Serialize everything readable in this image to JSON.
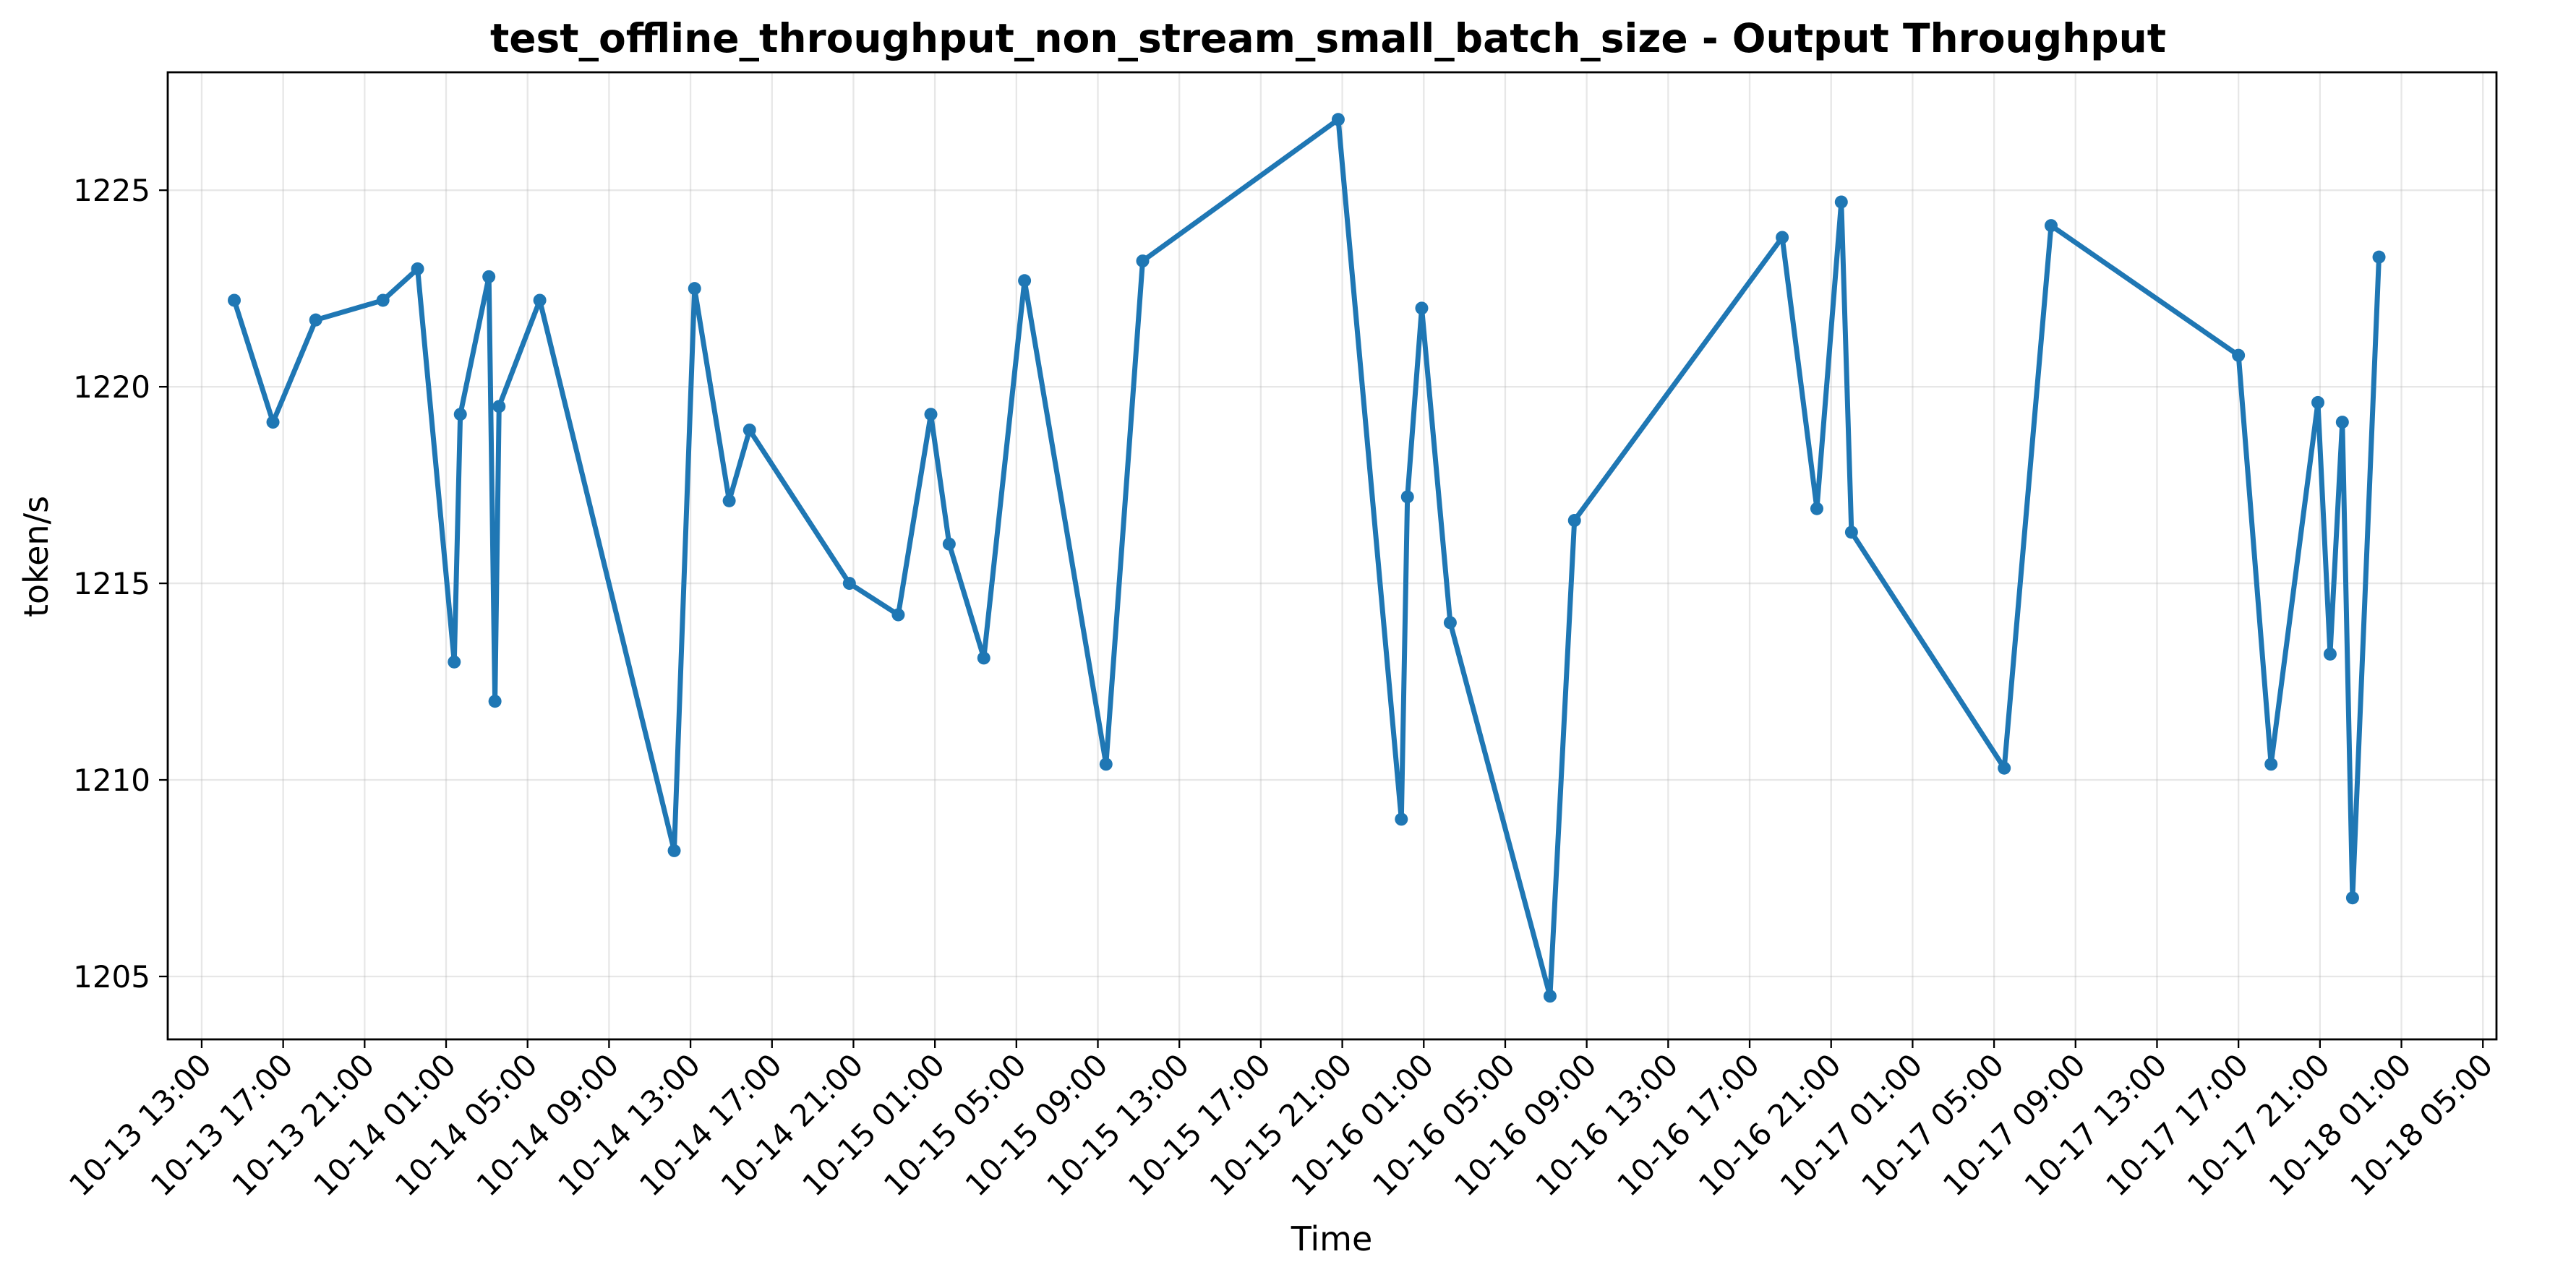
{
  "chart_data": {
    "type": "line",
    "title": "test_offline_throughput_non_stream_small_batch_size - Output Throughput",
    "xlabel": "Time",
    "ylabel": "token/s",
    "ylim": [
      1203.4,
      1228.0
    ],
    "xlim": [
      "2025-10-13 11:20",
      "2025-10-18 05:40"
    ],
    "grid": true,
    "color": "#1f77b4",
    "y_ticks": [
      1205,
      1210,
      1215,
      1220,
      1225
    ],
    "x_ticks": [
      {
        "t": "2025-10-13 13:00",
        "label": "10-13 13:00"
      },
      {
        "t": "2025-10-13 17:00",
        "label": "10-13 17:00"
      },
      {
        "t": "2025-10-13 21:00",
        "label": "10-13 21:00"
      },
      {
        "t": "2025-10-14 01:00",
        "label": "10-14 01:00"
      },
      {
        "t": "2025-10-14 05:00",
        "label": "10-14 05:00"
      },
      {
        "t": "2025-10-14 09:00",
        "label": "10-14 09:00"
      },
      {
        "t": "2025-10-14 13:00",
        "label": "10-14 13:00"
      },
      {
        "t": "2025-10-14 17:00",
        "label": "10-14 17:00"
      },
      {
        "t": "2025-10-14 21:00",
        "label": "10-14 21:00"
      },
      {
        "t": "2025-10-15 01:00",
        "label": "10-15 01:00"
      },
      {
        "t": "2025-10-15 05:00",
        "label": "10-15 05:00"
      },
      {
        "t": "2025-10-15 09:00",
        "label": "10-15 09:00"
      },
      {
        "t": "2025-10-15 13:00",
        "label": "10-15 13:00"
      },
      {
        "t": "2025-10-15 17:00",
        "label": "10-15 17:00"
      },
      {
        "t": "2025-10-15 21:00",
        "label": "10-15 21:00"
      },
      {
        "t": "2025-10-16 01:00",
        "label": "10-16 01:00"
      },
      {
        "t": "2025-10-16 05:00",
        "label": "10-16 05:00"
      },
      {
        "t": "2025-10-16 09:00",
        "label": "10-16 09:00"
      },
      {
        "t": "2025-10-16 13:00",
        "label": "10-16 13:00"
      },
      {
        "t": "2025-10-16 17:00",
        "label": "10-16 17:00"
      },
      {
        "t": "2025-10-16 21:00",
        "label": "10-16 21:00"
      },
      {
        "t": "2025-10-17 01:00",
        "label": "10-17 01:00"
      },
      {
        "t": "2025-10-17 05:00",
        "label": "10-17 05:00"
      },
      {
        "t": "2025-10-17 09:00",
        "label": "10-17 09:00"
      },
      {
        "t": "2025-10-17 13:00",
        "label": "10-17 13:00"
      },
      {
        "t": "2025-10-17 17:00",
        "label": "10-17 17:00"
      },
      {
        "t": "2025-10-17 21:00",
        "label": "10-17 21:00"
      },
      {
        "t": "2025-10-18 01:00",
        "label": "10-18 01:00"
      },
      {
        "t": "2025-10-18 05:00",
        "label": "10-18 05:00"
      }
    ],
    "series": [
      {
        "points": [
          {
            "t": "2025-10-13 14:36",
            "y": 1222.2
          },
          {
            "t": "2025-10-13 16:30",
            "y": 1219.1
          },
          {
            "t": "2025-10-13 18:36",
            "y": 1221.7
          },
          {
            "t": "2025-10-13 21:54",
            "y": 1222.2
          },
          {
            "t": "2025-10-13 23:36",
            "y": 1223.0
          },
          {
            "t": "2025-10-14 01:24",
            "y": 1213.0
          },
          {
            "t": "2025-10-14 01:42",
            "y": 1219.3
          },
          {
            "t": "2025-10-14 03:06",
            "y": 1222.8
          },
          {
            "t": "2025-10-14 03:24",
            "y": 1212.0
          },
          {
            "t": "2025-10-14 03:36",
            "y": 1219.5
          },
          {
            "t": "2025-10-14 05:36",
            "y": 1222.2
          },
          {
            "t": "2025-10-14 12:12",
            "y": 1208.2
          },
          {
            "t": "2025-10-14 13:12",
            "y": 1222.5
          },
          {
            "t": "2025-10-14 14:54",
            "y": 1217.1
          },
          {
            "t": "2025-10-14 15:54",
            "y": 1218.9
          },
          {
            "t": "2025-10-14 20:48",
            "y": 1215.0
          },
          {
            "t": "2025-10-14 23:12",
            "y": 1214.2
          },
          {
            "t": "2025-10-15 00:48",
            "y": 1219.3
          },
          {
            "t": "2025-10-15 01:42",
            "y": 1216.0
          },
          {
            "t": "2025-10-15 03:24",
            "y": 1213.1
          },
          {
            "t": "2025-10-15 05:24",
            "y": 1222.7
          },
          {
            "t": "2025-10-15 09:24",
            "y": 1210.4
          },
          {
            "t": "2025-10-15 11:12",
            "y": 1223.2
          },
          {
            "t": "2025-10-15 20:48",
            "y": 1226.8
          },
          {
            "t": "2025-10-15 23:54",
            "y": 1209.0
          },
          {
            "t": "2025-10-16 00:12",
            "y": 1217.2
          },
          {
            "t": "2025-10-16 00:54",
            "y": 1222.0
          },
          {
            "t": "2025-10-16 02:18",
            "y": 1214.0
          },
          {
            "t": "2025-10-16 07:12",
            "y": 1204.5
          },
          {
            "t": "2025-10-16 08:24",
            "y": 1216.6
          },
          {
            "t": "2025-10-16 18:36",
            "y": 1223.8
          },
          {
            "t": "2025-10-16 20:18",
            "y": 1216.9
          },
          {
            "t": "2025-10-16 21:30",
            "y": 1224.7
          },
          {
            "t": "2025-10-16 22:00",
            "y": 1216.3
          },
          {
            "t": "2025-10-17 05:30",
            "y": 1210.3
          },
          {
            "t": "2025-10-17 07:48",
            "y": 1224.1
          },
          {
            "t": "2025-10-17 17:00",
            "y": 1220.8
          },
          {
            "t": "2025-10-17 18:36",
            "y": 1210.4
          },
          {
            "t": "2025-10-17 20:54",
            "y": 1219.6
          },
          {
            "t": "2025-10-17 21:30",
            "y": 1213.2
          },
          {
            "t": "2025-10-17 22:06",
            "y": 1219.1
          },
          {
            "t": "2025-10-17 22:36",
            "y": 1207.0
          },
          {
            "t": "2025-10-17 23:54",
            "y": 1223.3
          }
        ]
      }
    ]
  }
}
